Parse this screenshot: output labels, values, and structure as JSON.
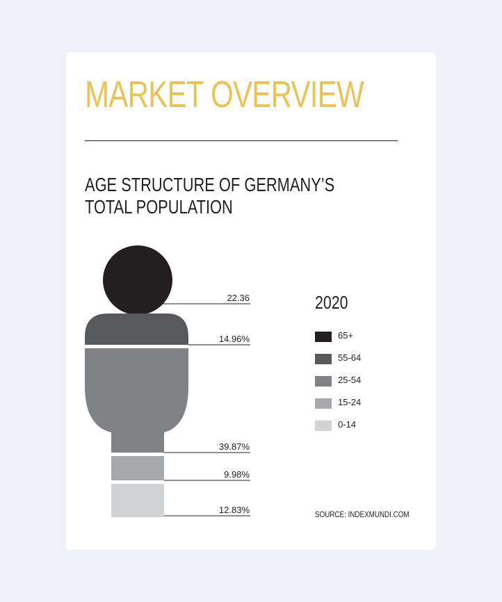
{
  "header": {
    "title": "MARKET OVERVIEW"
  },
  "chart_data": {
    "type": "pictograph",
    "title": "AGE STRUCTURE OF GERMANY’S",
    "title_line2": "TOTAL POPULATION",
    "year": "2020",
    "categories": [
      "65+",
      "55-64",
      "25-54",
      "15-24",
      "0-14"
    ],
    "values": [
      22.36,
      14.96,
      39.87,
      9.98,
      12.83
    ],
    "value_labels": [
      "22.36",
      "14.96%",
      "39.87%",
      "9.98%",
      "12.83%"
    ],
    "colors": [
      "#231f20",
      "#58595b",
      "#808285",
      "#a7a9ac",
      "#d1d3d4"
    ],
    "legend_placement": "right",
    "source": "SOURCE: INDEXMUNDI.COM"
  }
}
